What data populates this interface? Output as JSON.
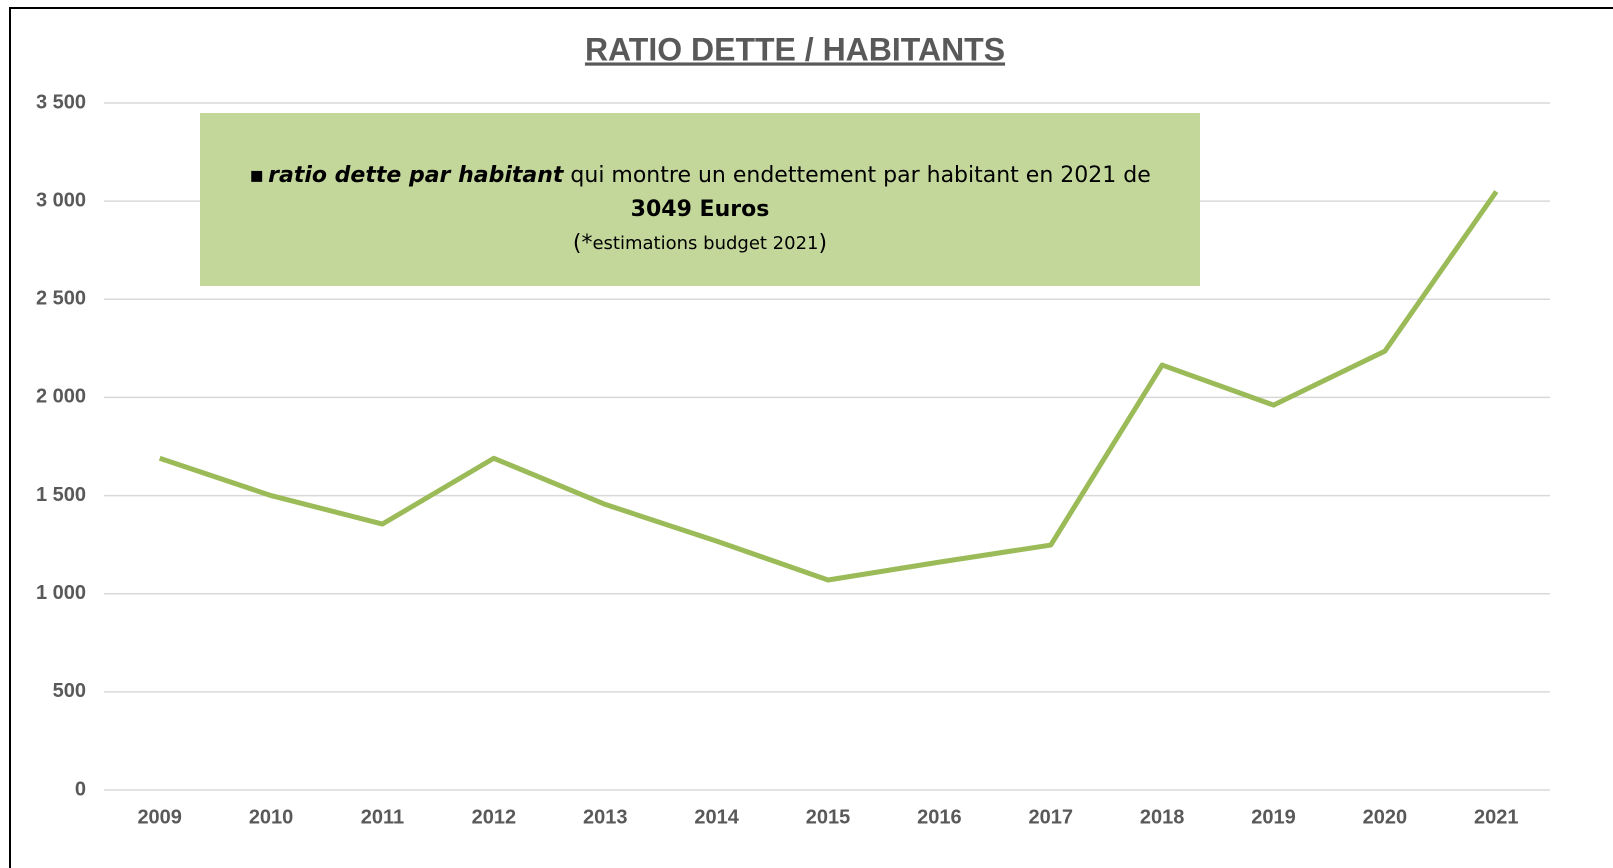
{
  "chart_data": {
    "type": "line",
    "title": "RATIO DETTE / HABITANTS",
    "categories": [
      "2009",
      "2010",
      "2011",
      "2012",
      "2013",
      "2014",
      "2015",
      "2016",
      "2017",
      "2018",
      "2019",
      "2020",
      "2021"
    ],
    "series": [
      {
        "color": "#9bbb59",
        "values": [
          1690,
          1500,
          1355,
          1690,
          1455,
          1268,
          1070,
          1161,
          1248,
          2165,
          1961,
          2236,
          3049
        ]
      }
    ],
    "ylim": [
      0,
      3500
    ],
    "yticks": [
      0,
      500,
      {
        "value": 1000,
        "label": "1 000"
      },
      {
        "value": 1500,
        "label": "1 500"
      },
      {
        "value": 2000,
        "label": "2 000"
      },
      {
        "value": 2500,
        "label": "2 500"
      },
      {
        "value": 3000,
        "label": "3 000"
      },
      {
        "value": 3500,
        "label": "3 500"
      }
    ],
    "grid": true,
    "annotation": {
      "bullet": "▪",
      "emphasis": "ratio dette par habitant",
      "text": "qui montre un endettement par habitant en 2021 de",
      "highlight": "3049 Euros",
      "note_open": "(*",
      "note": "estimations budget 2021",
      "note_close": ")"
    }
  }
}
